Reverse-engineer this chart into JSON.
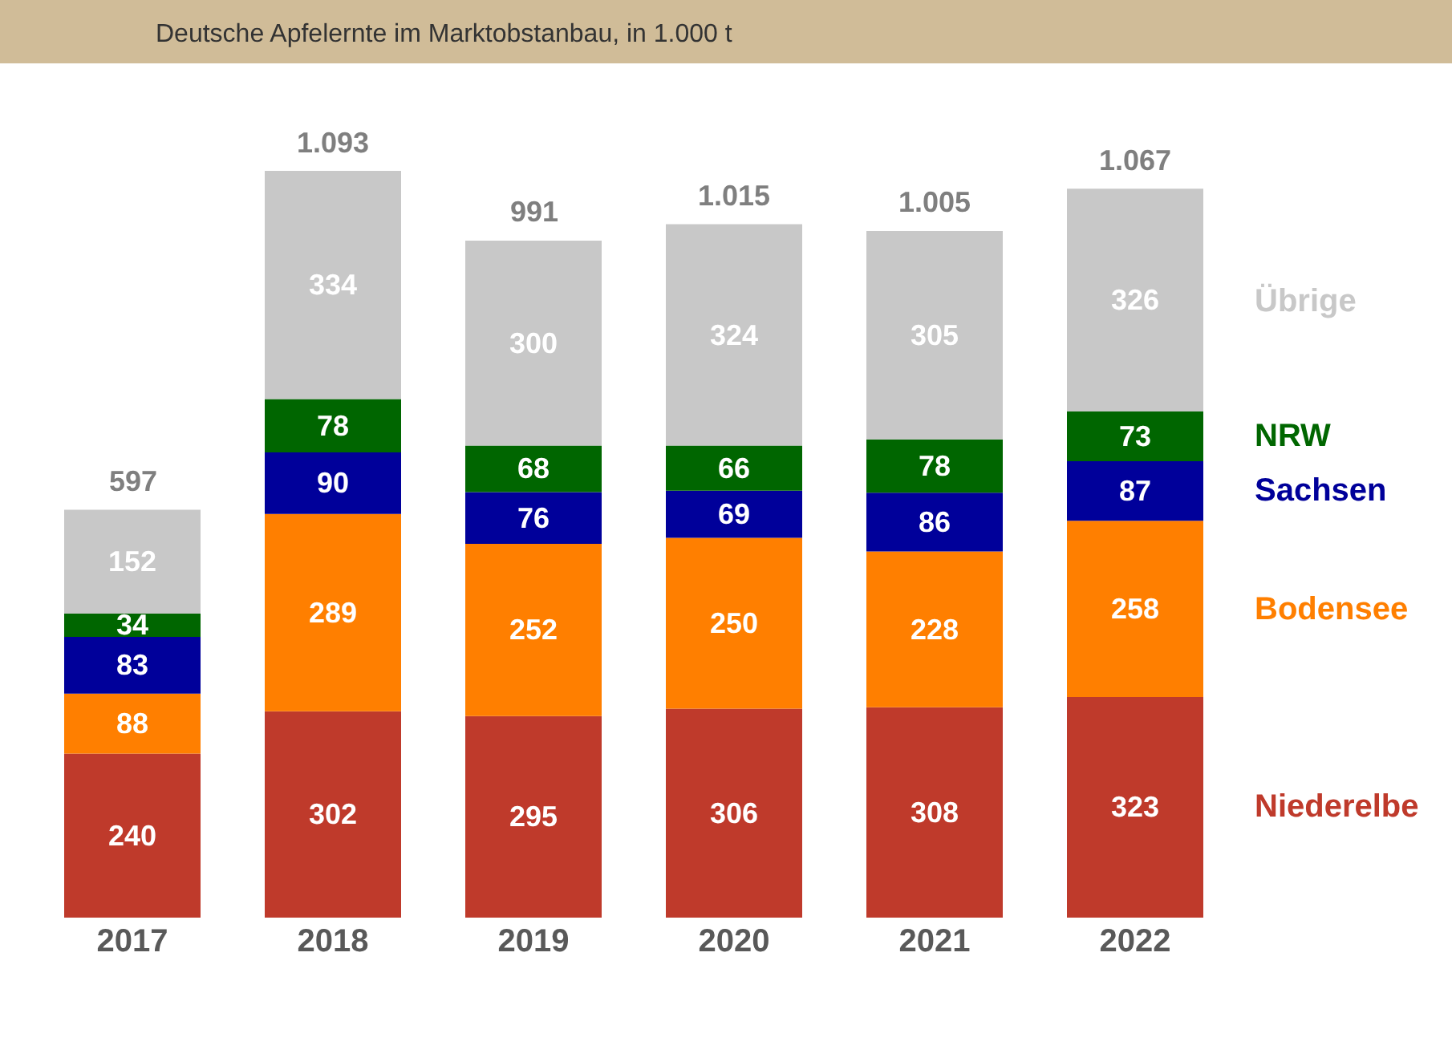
{
  "chart_data": {
    "type": "bar",
    "stacked": true,
    "data_labels": true,
    "subtitle": "Deutsche Apfelernte im Marktobstanbau, in 1.000 t",
    "categories": [
      "2017",
      "2018",
      "2019",
      "2020",
      "2021",
      "2022"
    ],
    "series": [
      {
        "name": "Niederelbe",
        "color": "#bf3a2b",
        "values": [
          240,
          302,
          295,
          306,
          308,
          323
        ]
      },
      {
        "name": "Bodensee",
        "color": "#ff7f00",
        "values": [
          88,
          289,
          252,
          250,
          228,
          258
        ]
      },
      {
        "name": "Sachsen",
        "color": "#00009a",
        "values": [
          83,
          90,
          76,
          69,
          86,
          87
        ]
      },
      {
        "name": "NRW",
        "color": "#006600",
        "values": [
          34,
          78,
          68,
          66,
          78,
          73
        ]
      },
      {
        "name": "Übrige",
        "color": "#c8c8c8",
        "values": [
          152,
          334,
          300,
          324,
          305,
          326
        ]
      }
    ],
    "totals": [
      "597",
      "1.093",
      "991",
      "1.015",
      "1.005",
      "1.067"
    ]
  }
}
